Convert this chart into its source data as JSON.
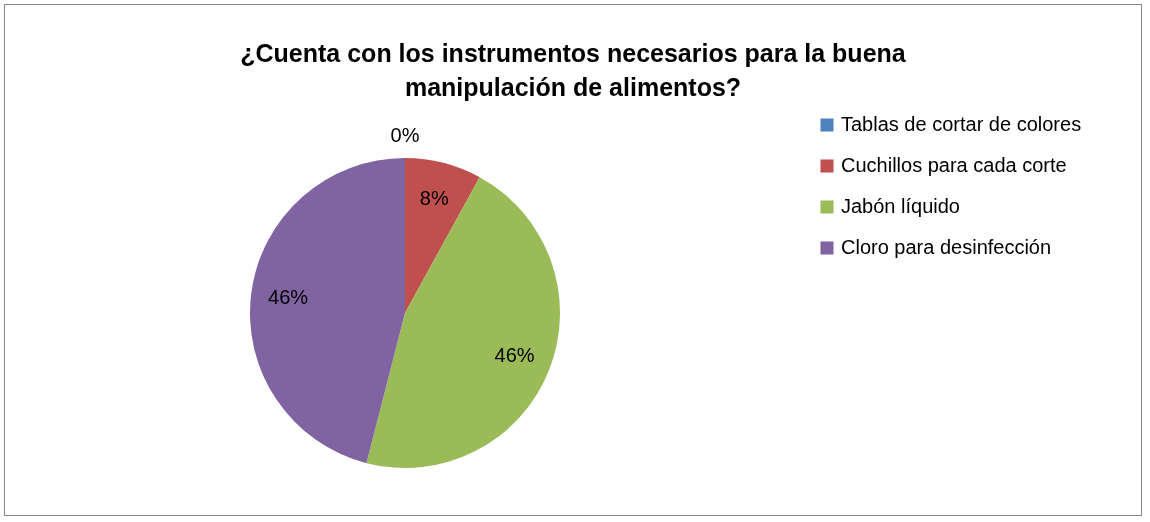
{
  "chart_data": {
    "type": "pie",
    "title": "¿Cuenta con los instrumentos necesarios para la buena manipulación de alimentos?",
    "categories": [
      "Tablas de cortar de colores",
      "Cuchillos para cada corte",
      "Jabón líquido",
      "Cloro para desinfección"
    ],
    "values": [
      0,
      8,
      46,
      46
    ],
    "colors": [
      "#4f81bd",
      "#c0504d",
      "#9bbb59",
      "#8064a2"
    ],
    "value_labels": [
      "0%",
      "8%",
      "46%",
      "46%"
    ],
    "legend": "right"
  }
}
